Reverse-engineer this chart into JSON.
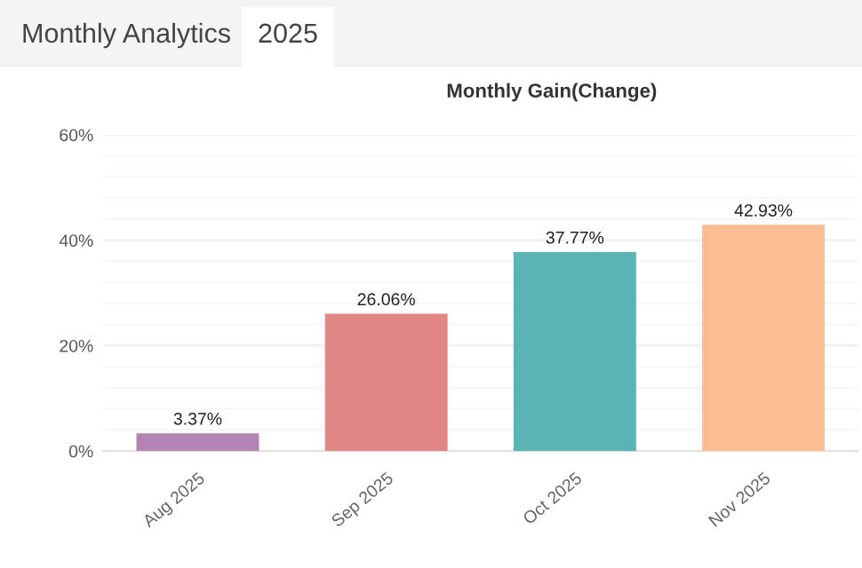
{
  "chart_data": {
    "type": "bar",
    "title": "Monthly Gain(Change)",
    "annotations": [
      "Monthly Analytics",
      "2025"
    ],
    "categories": [
      "Aug 2025",
      "Sep 2025",
      "Oct 2025",
      "Nov 2025"
    ],
    "values": [
      3.37,
      26.06,
      37.77,
      42.93
    ],
    "colors": [
      "#b384b3",
      "#e08685",
      "#5ab4b4",
      "#fdbd93"
    ],
    "value_labels": [
      "3.37%",
      "26.06%",
      "37.77%",
      "42.93%"
    ],
    "ylim": [
      0,
      60
    ],
    "yticks": [
      {
        "value": 0,
        "label": "0%"
      },
      {
        "value": 4,
        "label": null
      },
      {
        "value": 8,
        "label": null
      },
      {
        "value": 12,
        "label": null
      },
      {
        "value": 16,
        "label": null
      },
      {
        "value": 20,
        "label": "20%"
      },
      {
        "value": 24,
        "label": null
      },
      {
        "value": 28,
        "label": null
      },
      {
        "value": 32,
        "label": null
      },
      {
        "value": 36,
        "label": null
      },
      {
        "value": 40,
        "label": "40%"
      },
      {
        "value": 44,
        "label": null
      },
      {
        "value": 48,
        "label": null
      },
      {
        "value": 52,
        "label": null
      },
      {
        "value": 56,
        "label": null
      },
      {
        "value": 60,
        "label": "60%"
      }
    ],
    "grid": "y"
  }
}
